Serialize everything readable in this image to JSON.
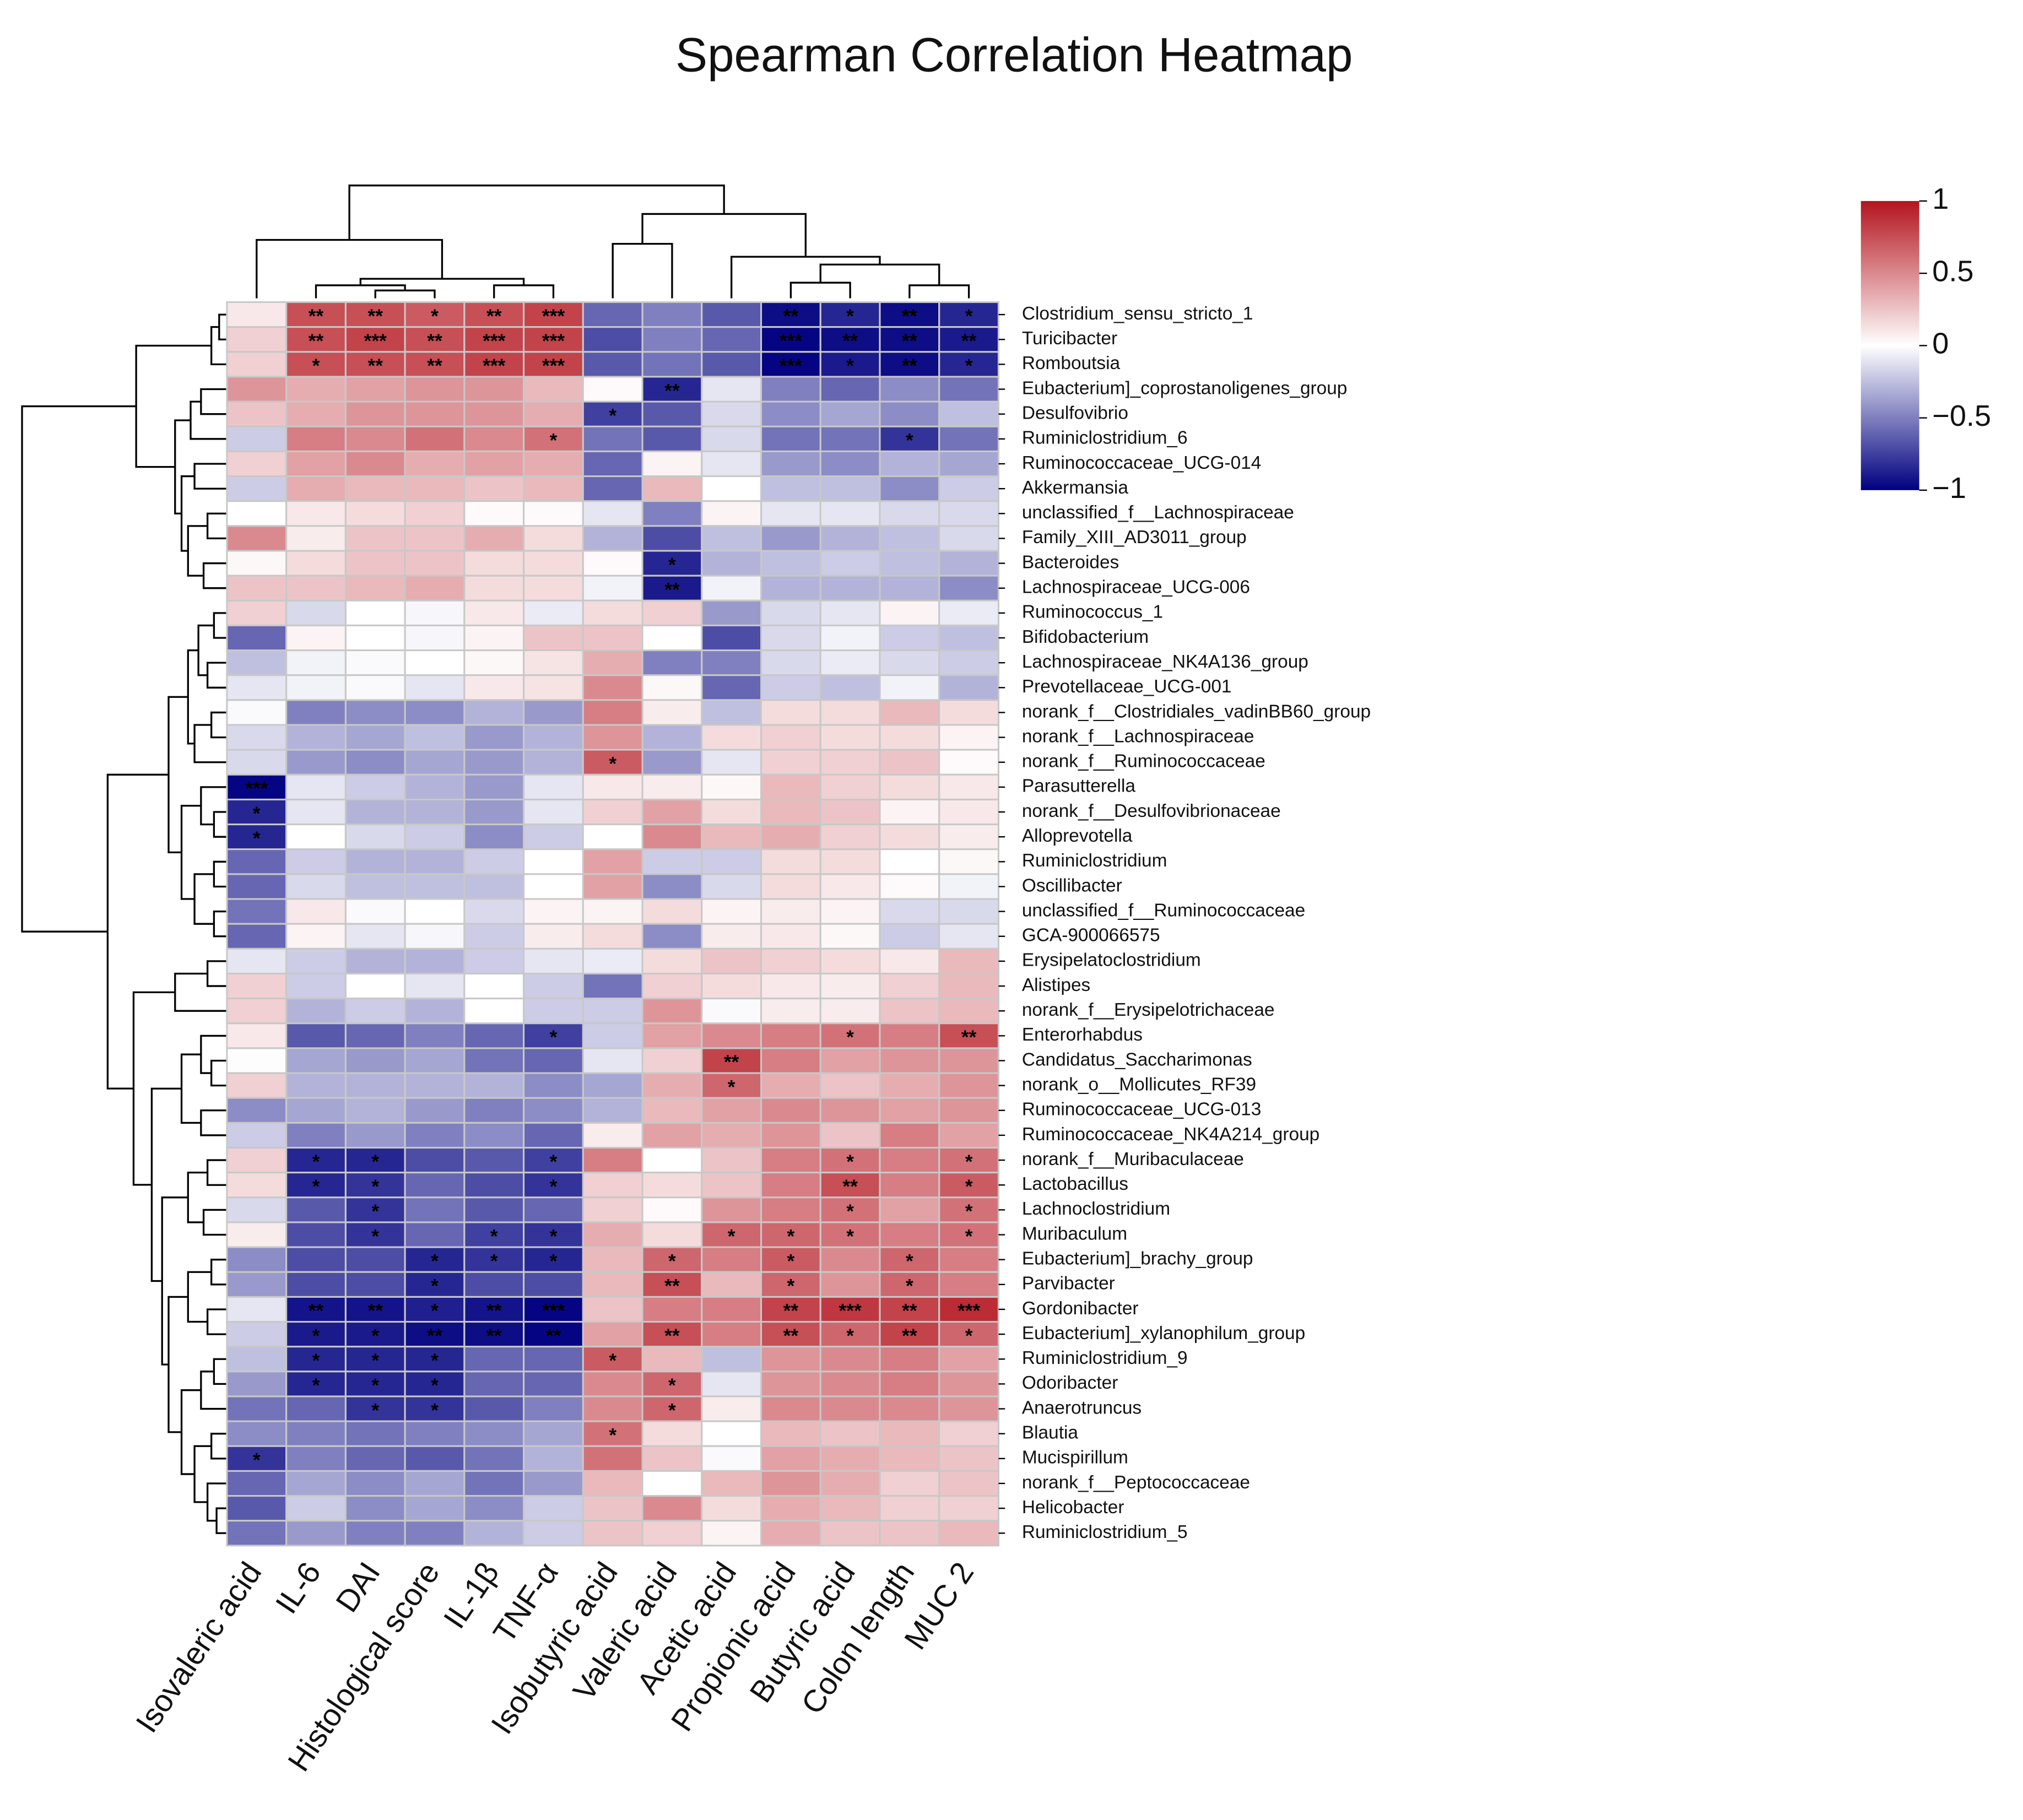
{
  "chart_data": {
    "type": "heatmap",
    "title": "Spearman Correlation Heatmap",
    "columns": [
      "Isovaleric acid",
      "IL-6",
      "DAI",
      "Histological score",
      "IL-1β",
      "TNF-α",
      "Isobutyric acid",
      "Valeric acid",
      "Acetic acid",
      "Propionic acid",
      "Butyric acid",
      "Colon length",
      "MUC 2"
    ],
    "rows": [
      "Clostridium_sensu_stricto_1",
      "Turicibacter",
      "Romboutsia",
      "Eubacterium]_coprostanoligenes_group",
      "Desulfovibrio",
      "Ruminiclostridium_6",
      "Ruminococcaceae_UCG-014",
      "Akkermansia",
      "unclassified_f__Lachnospiraceae",
      "Family_XIII_AD3011_group",
      "Bacteroides",
      "Lachnospiraceae_UCG-006",
      "Ruminococcus_1",
      "Bifidobacterium",
      "Lachnospiraceae_NK4A136_group",
      "Prevotellaceae_UCG-001",
      "norank_f__Clostridiales_vadinBB60_group",
      "norank_f__Lachnospiraceae",
      "norank_f__Ruminococcaceae",
      "Parasutterella",
      "norank_f__Desulfovibrionaceae",
      "Alloprevotella",
      "Ruminiclostridium",
      "Oscillibacter",
      "unclassified_f__Ruminococcaceae",
      "GCA-900066575",
      "Erysipelatoclostridium",
      "Alistipes",
      "norank_f__Erysipelotrichaceae",
      "Enterorhabdus",
      "Candidatus_Saccharimonas",
      "norank_o__Mollicutes_RF39",
      "Ruminococcaceae_UCG-013",
      "Ruminococcaceae_NK4A214_group",
      "norank_f__Muribaculaceae",
      "Lactobacillus",
      "Lachnoclostridium",
      "Muribaculum",
      "Eubacterium]_brachy_group",
      "Parvibacter",
      "Gordonibacter",
      "Eubacterium]_xylanophilum_group",
      "Ruminiclostridium_9",
      "Odoribacter",
      "Anaerotruncus",
      "Blautia",
      "Mucispirillum",
      "norank_f__Peptococcaceae",
      "Helicobacter",
      "Ruminiclostridium_5"
    ],
    "values": [
      [
        0.1,
        0.75,
        0.75,
        0.7,
        0.75,
        0.8,
        -0.6,
        -0.5,
        -0.65,
        -0.95,
        -0.85,
        -0.95,
        -0.85
      ],
      [
        0.2,
        0.75,
        0.8,
        0.75,
        0.8,
        0.8,
        -0.7,
        -0.5,
        -0.6,
        -0.98,
        -0.95,
        -0.95,
        -0.9
      ],
      [
        0.2,
        0.75,
        0.75,
        0.75,
        0.8,
        0.8,
        -0.65,
        -0.55,
        -0.65,
        -0.98,
        -0.9,
        -0.95,
        -0.85
      ],
      [
        0.45,
        0.35,
        0.4,
        0.45,
        0.45,
        0.3,
        0.02,
        -0.85,
        -0.1,
        -0.5,
        -0.6,
        -0.45,
        -0.55
      ],
      [
        0.25,
        0.35,
        0.45,
        0.45,
        0.45,
        0.35,
        -0.75,
        -0.65,
        -0.15,
        -0.45,
        -0.35,
        -0.45,
        -0.25
      ],
      [
        -0.2,
        0.55,
        0.5,
        0.6,
        0.5,
        0.6,
        -0.55,
        -0.65,
        -0.15,
        -0.55,
        -0.55,
        -0.8,
        -0.55
      ],
      [
        0.2,
        0.4,
        0.5,
        0.35,
        0.4,
        0.35,
        -0.6,
        0.05,
        -0.1,
        -0.4,
        -0.45,
        -0.3,
        -0.35
      ],
      [
        -0.2,
        0.35,
        0.3,
        0.3,
        0.25,
        0.3,
        -0.6,
        0.3,
        0.0,
        -0.25,
        -0.25,
        -0.45,
        -0.2
      ],
      [
        0.0,
        0.1,
        0.15,
        0.2,
        0.02,
        0.02,
        -0.1,
        -0.5,
        0.05,
        -0.1,
        -0.1,
        -0.15,
        -0.15
      ],
      [
        0.5,
        0.08,
        0.25,
        0.25,
        0.35,
        0.15,
        -0.3,
        -0.7,
        -0.25,
        -0.4,
        -0.3,
        -0.25,
        -0.15
      ],
      [
        0.03,
        0.15,
        0.25,
        0.25,
        0.15,
        0.15,
        0.02,
        -0.85,
        -0.3,
        -0.25,
        -0.2,
        -0.25,
        -0.3
      ],
      [
        0.25,
        0.25,
        0.3,
        0.35,
        0.15,
        0.15,
        -0.05,
        -0.9,
        -0.05,
        -0.3,
        -0.3,
        -0.3,
        -0.45
      ],
      [
        0.2,
        -0.15,
        0.0,
        -0.03,
        0.1,
        -0.08,
        0.15,
        0.2,
        -0.4,
        -0.15,
        -0.1,
        0.05,
        -0.08
      ],
      [
        -0.6,
        0.05,
        0.0,
        -0.03,
        0.05,
        0.25,
        0.25,
        0.0,
        -0.7,
        -0.15,
        -0.05,
        -0.2,
        -0.25
      ],
      [
        -0.25,
        -0.05,
        -0.02,
        0.0,
        0.03,
        0.12,
        0.35,
        -0.5,
        -0.5,
        -0.15,
        -0.08,
        -0.15,
        -0.2
      ],
      [
        -0.1,
        -0.05,
        -0.02,
        -0.1,
        0.1,
        0.12,
        0.5,
        0.03,
        -0.6,
        -0.2,
        -0.25,
        -0.05,
        -0.3
      ],
      [
        -0.02,
        -0.5,
        -0.45,
        -0.45,
        -0.3,
        -0.4,
        0.55,
        0.08,
        -0.25,
        0.15,
        0.15,
        0.3,
        0.15
      ],
      [
        -0.15,
        -0.3,
        -0.35,
        -0.25,
        -0.4,
        -0.3,
        0.45,
        -0.3,
        0.15,
        0.2,
        0.15,
        0.15,
        0.05
      ],
      [
        -0.15,
        -0.4,
        -0.45,
        -0.35,
        -0.4,
        -0.3,
        0.7,
        -0.4,
        -0.1,
        0.2,
        0.2,
        0.25,
        0.02
      ],
      [
        -0.98,
        -0.1,
        -0.2,
        -0.3,
        -0.4,
        -0.1,
        0.1,
        0.08,
        0.03,
        0.3,
        0.2,
        0.15,
        0.1
      ],
      [
        -0.85,
        -0.1,
        -0.3,
        -0.3,
        -0.4,
        -0.1,
        0.2,
        0.4,
        0.15,
        0.3,
        0.25,
        0.05,
        0.1
      ],
      [
        -0.85,
        0.0,
        -0.15,
        -0.2,
        -0.45,
        -0.2,
        0.0,
        0.5,
        0.3,
        0.35,
        0.2,
        0.15,
        0.08
      ],
      [
        -0.6,
        -0.2,
        -0.3,
        -0.3,
        -0.2,
        0.0,
        0.4,
        -0.2,
        -0.2,
        0.15,
        0.15,
        0.0,
        0.03
      ],
      [
        -0.6,
        -0.15,
        -0.25,
        -0.25,
        -0.25,
        0.0,
        0.4,
        -0.45,
        -0.15,
        0.15,
        0.1,
        0.02,
        -0.05
      ],
      [
        -0.55,
        0.1,
        -0.02,
        0.0,
        -0.15,
        0.05,
        0.05,
        0.15,
        0.05,
        0.08,
        0.05,
        -0.15,
        -0.15
      ],
      [
        -0.6,
        0.05,
        -0.1,
        -0.03,
        -0.2,
        0.08,
        0.15,
        -0.45,
        0.08,
        0.1,
        0.03,
        -0.2,
        -0.1
      ],
      [
        -0.1,
        -0.2,
        -0.3,
        -0.3,
        -0.2,
        -0.1,
        -0.08,
        0.15,
        0.25,
        0.2,
        0.15,
        0.1,
        0.3
      ],
      [
        0.2,
        -0.2,
        0.0,
        -0.1,
        0.0,
        -0.2,
        -0.55,
        0.2,
        0.15,
        0.1,
        0.08,
        0.2,
        0.3
      ],
      [
        0.2,
        -0.3,
        -0.2,
        -0.3,
        0.0,
        -0.2,
        -0.2,
        0.45,
        -0.02,
        0.08,
        0.08,
        0.25,
        0.3
      ],
      [
        0.1,
        -0.65,
        -0.6,
        -0.5,
        -0.6,
        -0.75,
        -0.2,
        0.4,
        0.5,
        0.55,
        0.6,
        0.55,
        0.75
      ],
      [
        0.01,
        -0.35,
        -0.4,
        -0.35,
        -0.55,
        -0.6,
        -0.1,
        0.2,
        0.8,
        0.55,
        0.4,
        0.45,
        0.45
      ],
      [
        0.2,
        -0.3,
        -0.3,
        -0.3,
        -0.3,
        -0.45,
        -0.35,
        0.35,
        0.65,
        0.35,
        0.25,
        0.35,
        0.45
      ],
      [
        -0.45,
        -0.35,
        -0.3,
        -0.4,
        -0.5,
        -0.45,
        -0.3,
        0.3,
        0.4,
        0.5,
        0.45,
        0.4,
        0.45
      ],
      [
        -0.2,
        -0.5,
        -0.4,
        -0.5,
        -0.45,
        -0.6,
        0.08,
        0.4,
        0.35,
        0.45,
        0.25,
        0.55,
        0.4
      ],
      [
        0.2,
        -0.85,
        -0.85,
        -0.7,
        -0.65,
        -0.75,
        0.55,
        0.0,
        0.25,
        0.55,
        0.6,
        0.55,
        0.6
      ],
      [
        0.15,
        -0.85,
        -0.8,
        -0.6,
        -0.7,
        -0.8,
        0.2,
        0.15,
        0.25,
        0.55,
        0.75,
        0.55,
        0.7
      ],
      [
        -0.15,
        -0.65,
        -0.8,
        -0.55,
        -0.65,
        -0.6,
        0.2,
        0.02,
        0.45,
        0.55,
        0.6,
        0.4,
        0.6
      ],
      [
        0.08,
        -0.7,
        -0.8,
        -0.6,
        -0.75,
        -0.8,
        0.35,
        0.15,
        0.65,
        0.65,
        0.6,
        0.55,
        0.6
      ],
      [
        -0.45,
        -0.7,
        -0.7,
        -0.85,
        -0.8,
        -0.85,
        0.3,
        0.65,
        0.55,
        0.7,
        0.5,
        0.65,
        0.55
      ],
      [
        -0.4,
        -0.7,
        -0.7,
        -0.85,
        -0.7,
        -0.7,
        0.3,
        0.75,
        0.3,
        0.65,
        0.45,
        0.65,
        0.55
      ],
      [
        -0.1,
        -0.92,
        -0.92,
        -0.88,
        -0.92,
        -0.98,
        0.25,
        0.55,
        0.55,
        0.8,
        0.85,
        0.8,
        0.9
      ],
      [
        -0.2,
        -0.9,
        -0.9,
        -0.95,
        -0.95,
        -0.98,
        0.4,
        0.75,
        0.55,
        0.75,
        0.65,
        0.8,
        0.65
      ],
      [
        -0.25,
        -0.85,
        -0.85,
        -0.85,
        -0.6,
        -0.6,
        0.7,
        0.3,
        -0.25,
        0.45,
        0.5,
        0.55,
        0.4
      ],
      [
        -0.4,
        -0.85,
        -0.85,
        -0.85,
        -0.6,
        -0.6,
        0.5,
        0.65,
        -0.1,
        0.45,
        0.5,
        0.55,
        0.45
      ],
      [
        -0.55,
        -0.6,
        -0.8,
        -0.8,
        -0.65,
        -0.5,
        0.5,
        0.65,
        0.08,
        0.5,
        0.5,
        0.5,
        0.45
      ],
      [
        -0.45,
        -0.5,
        -0.55,
        -0.5,
        -0.45,
        -0.35,
        0.6,
        0.15,
        0.0,
        0.3,
        0.25,
        0.3,
        0.2
      ],
      [
        -0.8,
        -0.5,
        -0.6,
        -0.65,
        -0.55,
        -0.3,
        0.6,
        0.25,
        -0.02,
        0.4,
        0.35,
        0.3,
        0.25
      ],
      [
        -0.6,
        -0.35,
        -0.45,
        -0.35,
        -0.55,
        -0.4,
        0.3,
        0.0,
        0.3,
        0.45,
        0.35,
        0.2,
        0.25
      ],
      [
        -0.65,
        -0.2,
        -0.45,
        -0.35,
        -0.45,
        -0.2,
        0.25,
        0.5,
        0.15,
        0.35,
        0.3,
        0.2,
        0.2
      ],
      [
        -0.55,
        -0.4,
        -0.5,
        -0.5,
        -0.3,
        -0.2,
        0.25,
        0.2,
        0.05,
        0.35,
        0.25,
        0.25,
        0.3
      ]
    ],
    "significance": [
      [
        0,
        1,
        "**"
      ],
      [
        0,
        2,
        "**"
      ],
      [
        0,
        3,
        "*"
      ],
      [
        0,
        4,
        "**"
      ],
      [
        0,
        5,
        "***"
      ],
      [
        0,
        9,
        "**"
      ],
      [
        0,
        10,
        "*"
      ],
      [
        0,
        11,
        "**"
      ],
      [
        0,
        12,
        "*"
      ],
      [
        1,
        1,
        "**"
      ],
      [
        1,
        2,
        "***"
      ],
      [
        1,
        3,
        "**"
      ],
      [
        1,
        4,
        "***"
      ],
      [
        1,
        5,
        "***"
      ],
      [
        1,
        9,
        "***"
      ],
      [
        1,
        10,
        "**"
      ],
      [
        1,
        11,
        "**"
      ],
      [
        1,
        12,
        "**"
      ],
      [
        2,
        1,
        "*"
      ],
      [
        2,
        2,
        "**"
      ],
      [
        2,
        3,
        "**"
      ],
      [
        2,
        4,
        "***"
      ],
      [
        2,
        5,
        "***"
      ],
      [
        2,
        9,
        "***"
      ],
      [
        2,
        10,
        "*"
      ],
      [
        2,
        11,
        "**"
      ],
      [
        2,
        12,
        "*"
      ],
      [
        3,
        7,
        "**"
      ],
      [
        4,
        6,
        "*"
      ],
      [
        5,
        5,
        "*"
      ],
      [
        5,
        11,
        "*"
      ],
      [
        10,
        7,
        "*"
      ],
      [
        11,
        7,
        "**"
      ],
      [
        18,
        6,
        "*"
      ],
      [
        19,
        0,
        "***"
      ],
      [
        20,
        0,
        "*"
      ],
      [
        21,
        0,
        "*"
      ],
      [
        29,
        5,
        "*"
      ],
      [
        29,
        10,
        "*"
      ],
      [
        29,
        12,
        "**"
      ],
      [
        30,
        8,
        "**"
      ],
      [
        31,
        8,
        "*"
      ],
      [
        34,
        1,
        "*"
      ],
      [
        34,
        2,
        "*"
      ],
      [
        34,
        5,
        "*"
      ],
      [
        34,
        10,
        "*"
      ],
      [
        34,
        12,
        "*"
      ],
      [
        35,
        1,
        "*"
      ],
      [
        35,
        2,
        "*"
      ],
      [
        35,
        5,
        "*"
      ],
      [
        35,
        10,
        "**"
      ],
      [
        35,
        12,
        "*"
      ],
      [
        36,
        2,
        "*"
      ],
      [
        36,
        10,
        "*"
      ],
      [
        36,
        12,
        "*"
      ],
      [
        37,
        2,
        "*"
      ],
      [
        37,
        4,
        "*"
      ],
      [
        37,
        5,
        "*"
      ],
      [
        37,
        8,
        "*"
      ],
      [
        37,
        9,
        "*"
      ],
      [
        37,
        10,
        "*"
      ],
      [
        37,
        12,
        "*"
      ],
      [
        38,
        3,
        "*"
      ],
      [
        38,
        4,
        "*"
      ],
      [
        38,
        5,
        "*"
      ],
      [
        38,
        7,
        "*"
      ],
      [
        38,
        9,
        "*"
      ],
      [
        38,
        11,
        "*"
      ],
      [
        39,
        3,
        "*"
      ],
      [
        39,
        7,
        "**"
      ],
      [
        39,
        9,
        "*"
      ],
      [
        39,
        11,
        "*"
      ],
      [
        40,
        1,
        "**"
      ],
      [
        40,
        2,
        "**"
      ],
      [
        40,
        3,
        "*"
      ],
      [
        40,
        4,
        "**"
      ],
      [
        40,
        5,
        "***"
      ],
      [
        40,
        9,
        "**"
      ],
      [
        40,
        10,
        "***"
      ],
      [
        40,
        11,
        "**"
      ],
      [
        40,
        12,
        "***"
      ],
      [
        41,
        1,
        "*"
      ],
      [
        41,
        2,
        "*"
      ],
      [
        41,
        3,
        "**"
      ],
      [
        41,
        4,
        "**"
      ],
      [
        41,
        5,
        "**"
      ],
      [
        41,
        7,
        "**"
      ],
      [
        41,
        9,
        "**"
      ],
      [
        41,
        10,
        "*"
      ],
      [
        41,
        11,
        "**"
      ],
      [
        41,
        12,
        "*"
      ],
      [
        42,
        1,
        "*"
      ],
      [
        42,
        2,
        "*"
      ],
      [
        42,
        3,
        "*"
      ],
      [
        42,
        6,
        "*"
      ],
      [
        43,
        1,
        "*"
      ],
      [
        43,
        2,
        "*"
      ],
      [
        43,
        3,
        "*"
      ],
      [
        43,
        7,
        "*"
      ],
      [
        44,
        2,
        "*"
      ],
      [
        44,
        3,
        "*"
      ],
      [
        44,
        7,
        "*"
      ],
      [
        45,
        6,
        "*"
      ],
      [
        46,
        0,
        "*"
      ]
    ],
    "legend": {
      "position": "top-right",
      "range": [
        -1,
        1
      ],
      "ticks": [
        1,
        0.5,
        0,
        -0.5,
        -1
      ],
      "tick_labels": [
        "1",
        "0.5",
        "0",
        "−0.5",
        "−1"
      ],
      "colors": {
        "high": "#b4141e",
        "mid": "#ffffff",
        "low": "#000080"
      }
    }
  }
}
